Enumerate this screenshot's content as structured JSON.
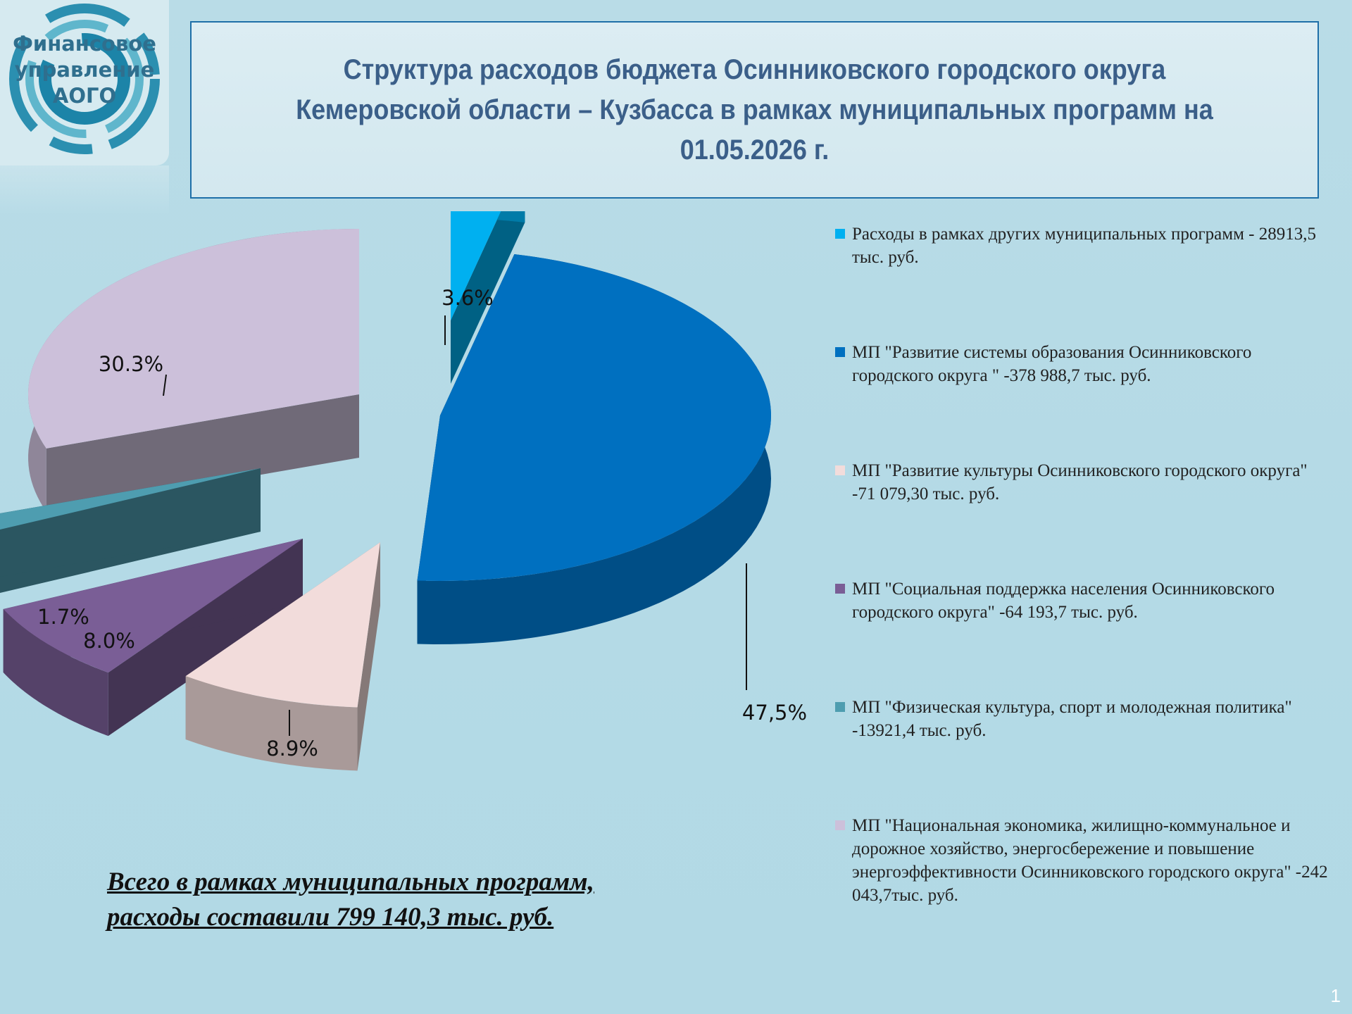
{
  "logo": {
    "lines": [
      "Финансовое",
      "управление",
      "АОГО"
    ]
  },
  "header": {
    "title_lines": [
      "Структура расходов бюджета Осинниковского городского округа",
      "Кемеровской области – Кузбасса в рамках муниципальных программ на",
      "01.05.2026 г."
    ]
  },
  "chart_data": {
    "type": "pie",
    "title": "",
    "slices": [
      {
        "label": "3.6%",
        "value": 3.6,
        "color": "#00b0f0"
      },
      {
        "label": "47,5%",
        "value": 47.5,
        "color": "#0070c0"
      },
      {
        "label": "8.9%",
        "value": 8.9,
        "color": "#f2dcdb"
      },
      {
        "label": "8.0%",
        "value": 8.0,
        "color": "#7a5e96"
      },
      {
        "label": "1.7%",
        "value": 1.7,
        "color": "#4e9db0"
      },
      {
        "label": "30.3%",
        "value": 30.3,
        "color": "#ccc0da"
      }
    ],
    "legend_position": "right"
  },
  "legend": [
    {
      "color": "#00b0f0",
      "text": "Расходы в рамках других муниципальных программ - 28913,5 тыс. руб."
    },
    {
      "color": "#0070c0",
      "text": "МП \"Развитие системы образования Осинниковского городского округа \" -378 988,7 тыс. руб."
    },
    {
      "color": "#f2dcdb",
      "text": "МП \"Развитие культуры Осинниковского городского округа\" -71 079,30 тыс. руб."
    },
    {
      "color": "#7a5e96",
      "text": "МП \"Социальная поддержка населения Осинниковского городского округа\" -64 193,7 тыс. руб."
    },
    {
      "color": "#4e9db0",
      "text": "МП \"Физическая культура, спорт и молодежная политика\" -13921,4 тыс. руб."
    },
    {
      "color": "#ccc0da",
      "text": "МП \"Национальная экономика, жилищно-коммунальное и дорожное хозяйство, энергосбережение и повышение энергоэффективности Осинниковского городского округа\" -242 043,7тыс. руб."
    }
  ],
  "total": {
    "lines": [
      "Всего в рамках муниципальных программ,",
      "расходы составили 799 140,3 тыс. руб."
    ]
  },
  "page_number": "1"
}
